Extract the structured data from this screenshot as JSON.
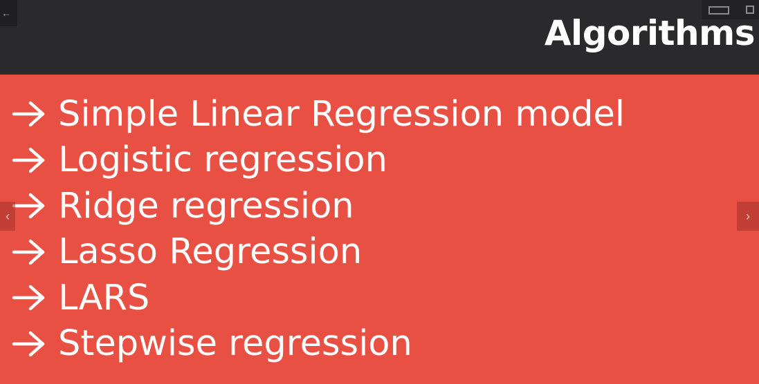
{
  "header": {
    "title": "Algorithms",
    "back_icon": "arrow-left-icon",
    "controls": [
      "restore-window-icon",
      "fullscreen-icon"
    ]
  },
  "slide": {
    "bullet_icon": "arrow-right-icon",
    "items": [
      "Simple Linear Regression model",
      "Logistic regression",
      "Ridge regression",
      "Lasso Regression",
      "LARS",
      "Stepwise regression"
    ]
  },
  "nav": {
    "prev_icon": "chevron-left-icon",
    "next_icon": "chevron-right-icon"
  },
  "colors": {
    "header_bg": "#2A292B",
    "slide_bg": "#E85044",
    "text": "#FFFFFF"
  }
}
